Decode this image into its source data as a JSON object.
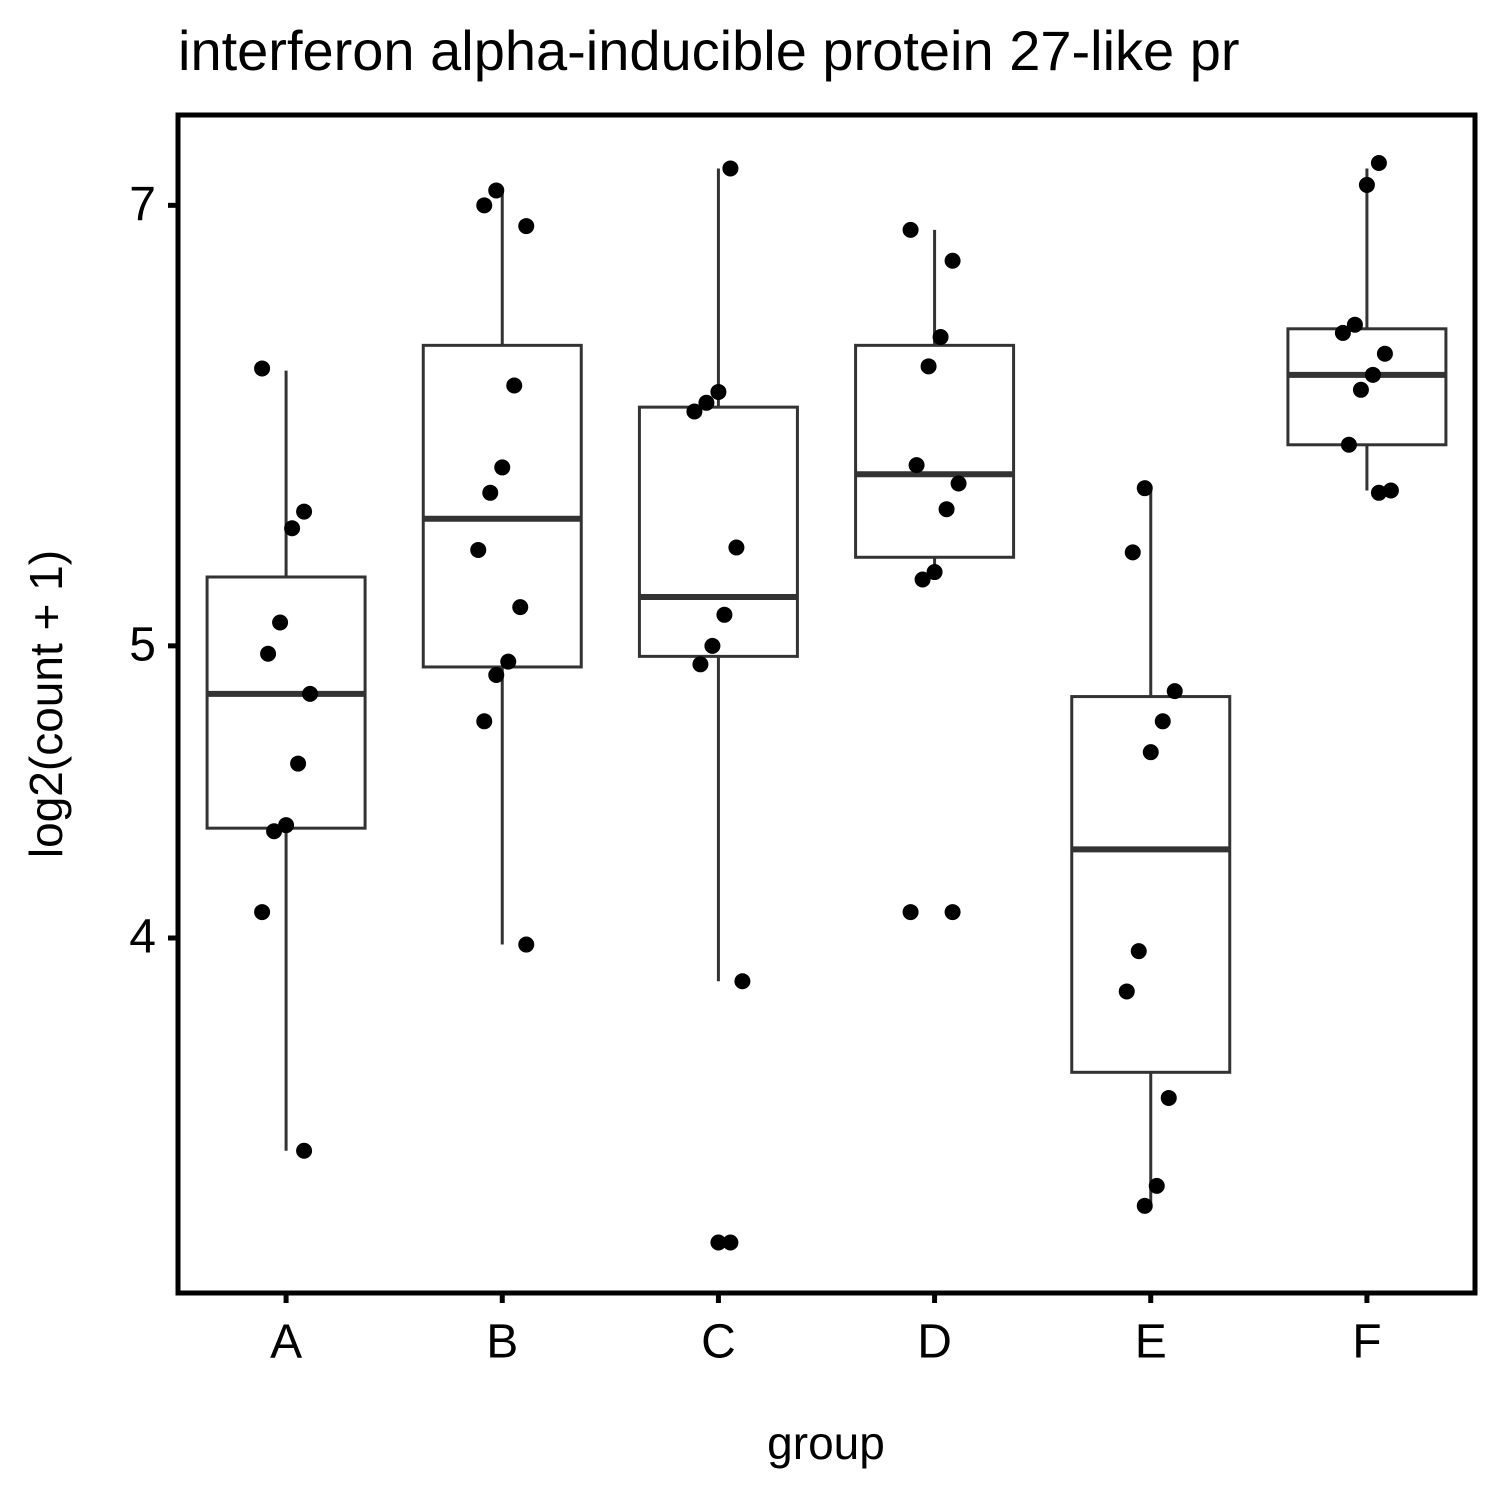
{
  "chart_data": {
    "type": "box",
    "title": "interferon alpha-inducible protein 27-like pr",
    "x_label": "group",
    "y_label": "log2(count + 1)",
    "y_scale": "log",
    "ylim": [
      3.05,
      7.5
    ],
    "yticks": [
      4,
      5,
      7
    ],
    "categories": [
      "A",
      "B",
      "C",
      "D",
      "E",
      "F"
    ],
    "whisker_low": [
      3.4,
      3.98,
      3.87,
      5.26,
      3.26,
      5.63
    ],
    "q1": [
      4.35,
      4.92,
      4.96,
      5.35,
      3.61,
      5.83
    ],
    "median": [
      4.82,
      5.51,
      5.19,
      5.7,
      4.28,
      6.15
    ],
    "q3": [
      5.27,
      6.29,
      6.0,
      6.29,
      4.81,
      6.37
    ],
    "whisker_high": [
      6.17,
      7.08,
      7.2,
      6.87,
      5.64,
      7.2
    ],
    "points": [
      [
        6.18,
        5.54,
        5.47,
        5.09,
        4.97,
        4.82,
        4.57,
        4.36,
        4.34,
        4.08,
        3.4
      ],
      [
        7.08,
        7.0,
        6.89,
        6.1,
        5.73,
        5.62,
        5.38,
        5.15,
        4.94,
        4.89,
        4.72,
        3.98
      ],
      [
        7.2,
        6.07,
        6.02,
        5.98,
        5.39,
        5.12,
        5.0,
        4.93,
        3.87,
        3.17,
        3.17
      ],
      [
        6.87,
        6.71,
        6.33,
        6.19,
        5.74,
        5.66,
        5.55,
        5.29,
        5.26,
        4.08,
        4.08
      ],
      [
        5.64,
        5.37,
        4.83,
        4.72,
        4.61,
        3.96,
        3.84,
        3.54,
        3.31,
        3.26
      ],
      [
        7.23,
        7.11,
        6.39,
        6.35,
        6.25,
        6.15,
        6.08,
        5.83,
        5.63,
        5.62
      ]
    ],
    "box_color": "#333333",
    "point_color": "#000000"
  }
}
